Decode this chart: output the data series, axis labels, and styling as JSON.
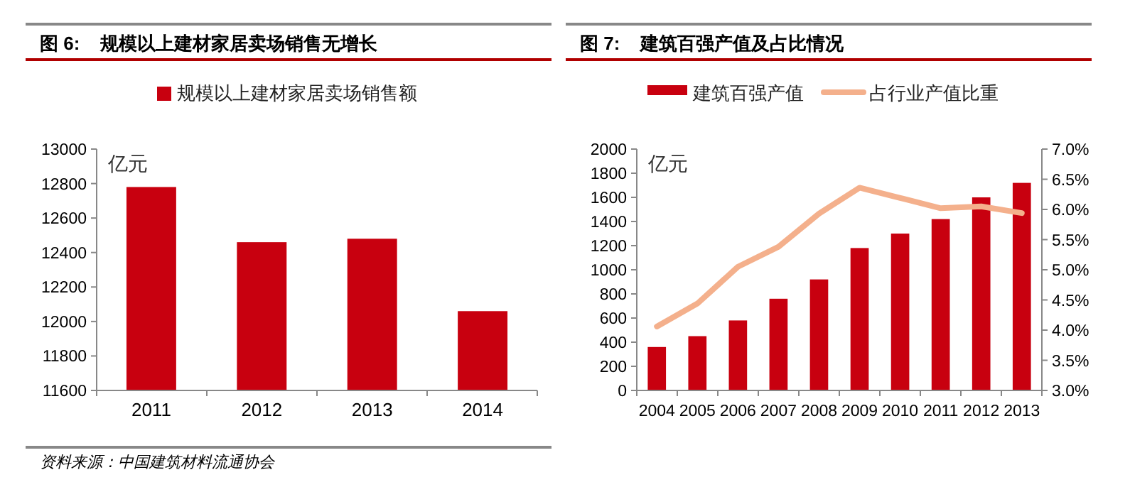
{
  "chart_data": [
    {
      "type": "bar",
      "title": "图 6:    规模以上建材家居卖场销售无增长",
      "ylabel": "亿元",
      "categories": [
        "2011",
        "2012",
        "2013",
        "2014"
      ],
      "series": [
        {
          "name": "规模以上建材家居卖场销售额",
          "color": "#c8000f",
          "values": [
            12780,
            12460,
            12480,
            12060
          ]
        }
      ],
      "ylim": [
        11600,
        13000
      ],
      "yticks": [
        11600,
        11800,
        12000,
        12200,
        12400,
        12600,
        12800,
        13000
      ],
      "legend": "top",
      "annotations": [
        "资料来源：中国建筑材料流通协会"
      ]
    },
    {
      "type": "bar",
      "title": "图 7:    建筑百强产值及占比情况",
      "ylabel": "亿元",
      "categories": [
        "2004",
        "2005",
        "2006",
        "2007",
        "2008",
        "2009",
        "2010",
        "2011",
        "2012",
        "2013"
      ],
      "series": [
        {
          "name": "建筑百强产值",
          "color": "#c8000f",
          "values": [
            360,
            450,
            580,
            760,
            920,
            1180,
            1300,
            1420,
            1600,
            1720
          ]
        },
        {
          "name": "占行业产值比重",
          "type": "line",
          "axis": "y2",
          "color": "#f4b08c",
          "values": [
            4.06,
            4.44,
            5.05,
            5.38,
            5.93,
            6.36,
            6.19,
            6.02,
            6.05,
            5.94
          ]
        }
      ],
      "ylim": [
        0,
        2000
      ],
      "yticks": [
        0,
        200,
        400,
        600,
        800,
        1000,
        1200,
        1400,
        1600,
        1800,
        2000
      ],
      "y2lim": [
        3,
        7
      ],
      "y2ticks": [
        {
          "value": 3,
          "label": "3.0%"
        },
        {
          "value": 3.5,
          "label": "3.5%"
        },
        {
          "value": 4,
          "label": "4.0%"
        },
        {
          "value": 4.5,
          "label": "4.5%"
        },
        {
          "value": 5,
          "label": "5.0%"
        },
        {
          "value": 5.5,
          "label": "5.5%"
        },
        {
          "value": 6,
          "label": "6.0%"
        },
        {
          "value": 6.5,
          "label": "6.5%"
        },
        {
          "value": 7,
          "label": "7.0%"
        }
      ],
      "legend": "top"
    }
  ]
}
